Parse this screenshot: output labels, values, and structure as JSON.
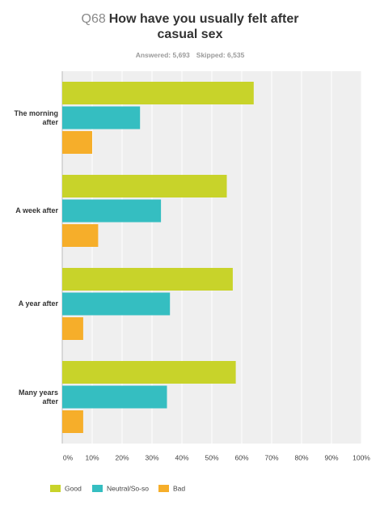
{
  "question_number": "Q68",
  "chart_data": {
    "type": "bar",
    "orientation": "horizontal",
    "title": "How have you usually felt after casual sex",
    "answered": "Answered: 5,693",
    "skipped": "Skipped: 6,535",
    "categories": [
      "The morning after",
      "A week after",
      "A year after",
      "Many years after"
    ],
    "series": [
      {
        "name": "Good",
        "color": "#c8d32a",
        "values": [
          64,
          55,
          57,
          58
        ]
      },
      {
        "name": "Neutral/So-so",
        "color": "#35bec1",
        "values": [
          26,
          33,
          36,
          35
        ]
      },
      {
        "name": "Bad",
        "color": "#f6ae2a",
        "values": [
          10,
          12,
          7,
          7
        ]
      }
    ],
    "xlim": [
      0,
      100
    ],
    "xticks": [
      {
        "value": 0,
        "label": "0%"
      },
      {
        "value": 10,
        "label": "10%"
      },
      {
        "value": 20,
        "label": "20%"
      },
      {
        "value": 30,
        "label": "30%"
      },
      {
        "value": 40,
        "label": "40%"
      },
      {
        "value": 50,
        "label": "50%"
      },
      {
        "value": 60,
        "label": "60%"
      },
      {
        "value": 70,
        "label": "70%"
      },
      {
        "value": 80,
        "label": "80%"
      },
      {
        "value": 90,
        "label": "90%"
      },
      {
        "value": 100,
        "label": "100%"
      }
    ],
    "grid": true,
    "legend": "bottom"
  }
}
